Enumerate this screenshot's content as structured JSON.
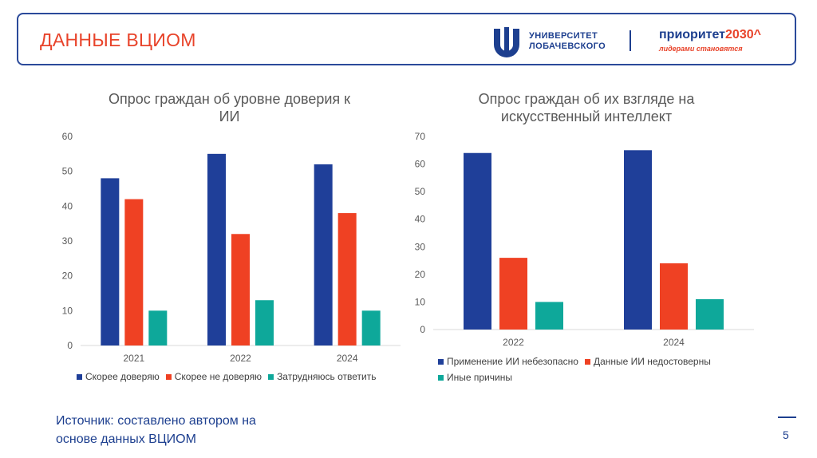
{
  "header": {
    "title": "ДАННЫЕ ВЦИОМ",
    "university_line1": "УНИВЕРСИТЕТ",
    "university_line2": "ЛОБАЧЕВСКОГО",
    "priority_brand": "приоритет",
    "priority_year": "2030",
    "priority_mark": "^",
    "priority_slogan": "лидерами становятся"
  },
  "colors": {
    "blue": "#1f3f99",
    "orange": "#ef4123",
    "teal": "#0ea89a",
    "accent": "#e8432a",
    "brand_blue": "#1d3f8f"
  },
  "chart_data": [
    {
      "type": "bar",
      "title_line1": "Опрос граждан об уровне доверия к",
      "title_line2": "ИИ",
      "categories": [
        "2021",
        "2022",
        "2024"
      ],
      "series": [
        {
          "name": "Скорее доверяю",
          "values": [
            48,
            55,
            52
          ]
        },
        {
          "name": "Скорее не доверяю",
          "values": [
            42,
            32,
            38
          ]
        },
        {
          "name": "Затрудняюсь ответить",
          "values": [
            10,
            13,
            10
          ]
        }
      ],
      "ylim": [
        0,
        60
      ],
      "yticks": [
        0,
        10,
        20,
        30,
        40,
        50,
        60
      ],
      "grid": false,
      "legend": "bottom"
    },
    {
      "type": "bar",
      "title_line1": "Опрос граждан об их взгляде на",
      "title_line2": "искусственный интеллект",
      "categories": [
        "2022",
        "2024"
      ],
      "series": [
        {
          "name": "Применение ИИ небезопасно",
          "values": [
            64,
            65
          ]
        },
        {
          "name": "Данные ИИ недостоверны",
          "values": [
            26,
            24
          ]
        },
        {
          "name": "Иные причины",
          "values": [
            10,
            11
          ]
        }
      ],
      "ylim": [
        0,
        70
      ],
      "yticks": [
        0,
        10,
        20,
        30,
        40,
        50,
        60,
        70
      ],
      "grid": false,
      "legend": "bottom"
    }
  ],
  "footer": {
    "source_line1": "Источник: составлено автором на",
    "source_line2": "основе данных ВЦИОМ",
    "slide_number": "5"
  }
}
